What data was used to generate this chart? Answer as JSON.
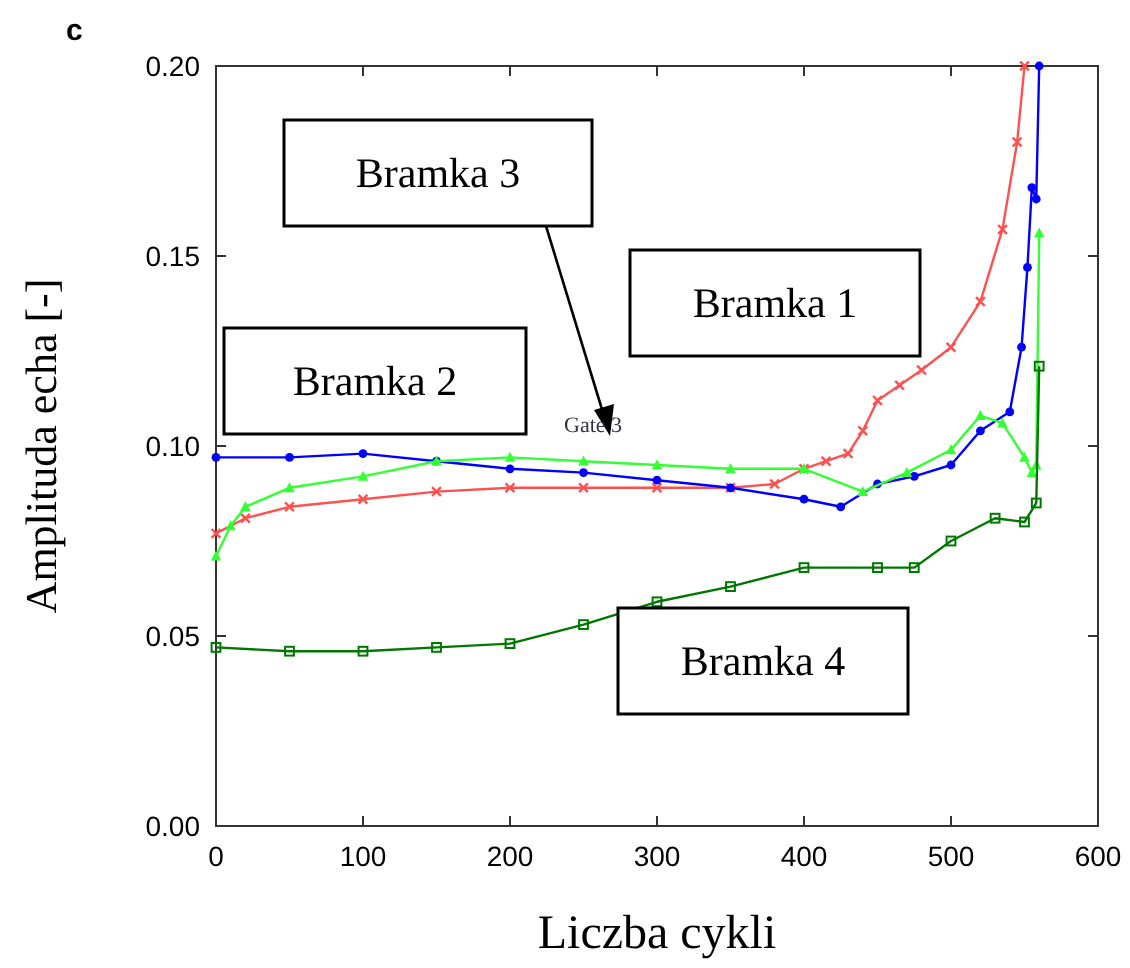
{
  "chart_data": {
    "type": "line",
    "xlabel": "Liczba cykli",
    "ylabel": "Amplituda echa [-]",
    "xlim": [
      0,
      600
    ],
    "ylim": [
      0,
      0.2
    ],
    "xticks": [
      0,
      100,
      200,
      300,
      400,
      500,
      600
    ],
    "yticks": [
      {
        "value": 0,
        "label": "0.00"
      },
      {
        "value": 0.05,
        "label": "0.05"
      },
      {
        "value": 0.1,
        "label": "0.10"
      },
      {
        "value": 0.15,
        "label": "0.15"
      },
      {
        "value": 0.2,
        "label": "0.20"
      }
    ],
    "grid": false,
    "annotations": [
      "c",
      "Bramka 3",
      "Bramka 1",
      "Bramka 2",
      "Bramka 4",
      "Gate 3"
    ],
    "series": [
      {
        "color": "#ff5050",
        "marker": "cross",
        "x": [
          0,
          20,
          50,
          100,
          150,
          200,
          250,
          300,
          350,
          380,
          400,
          415,
          430,
          440,
          450,
          465,
          480,
          500,
          520,
          535,
          545,
          550
        ],
        "values": [
          0.077,
          0.081,
          0.084,
          0.086,
          0.088,
          0.089,
          0.089,
          0.089,
          0.089,
          0.09,
          0.094,
          0.096,
          0.098,
          0.104,
          0.112,
          0.116,
          0.12,
          0.126,
          0.138,
          0.157,
          0.18,
          0.2
        ]
      },
      {
        "color": "#0000ff",
        "marker": "circle",
        "x": [
          0,
          50,
          100,
          150,
          200,
          250,
          300,
          350,
          400,
          425,
          450,
          475,
          500,
          520,
          540,
          548,
          552,
          555,
          558,
          560
        ],
        "values": [
          0.097,
          0.097,
          0.098,
          0.096,
          0.094,
          0.093,
          0.091,
          0.089,
          0.086,
          0.084,
          0.09,
          0.092,
          0.095,
          0.104,
          0.109,
          0.126,
          0.147,
          0.168,
          0.165,
          0.2
        ]
      },
      {
        "color": "#33ff33",
        "marker": "triangle",
        "x": [
          0,
          10,
          20,
          50,
          100,
          150,
          200,
          250,
          300,
          350,
          400,
          440,
          470,
          500,
          520,
          535,
          550,
          555,
          558,
          560
        ],
        "values": [
          0.071,
          0.079,
          0.084,
          0.089,
          0.092,
          0.096,
          0.097,
          0.096,
          0.095,
          0.094,
          0.094,
          0.088,
          0.093,
          0.099,
          0.108,
          0.106,
          0.097,
          0.093,
          0.095,
          0.156
        ]
      },
      {
        "color": "#007700",
        "marker": "square",
        "x": [
          0,
          50,
          100,
          150,
          200,
          250,
          300,
          350,
          400,
          450,
          475,
          500,
          530,
          550,
          558,
          560
        ],
        "values": [
          0.047,
          0.046,
          0.046,
          0.047,
          0.048,
          0.053,
          0.059,
          0.063,
          0.068,
          0.068,
          0.068,
          0.075,
          0.081,
          0.08,
          0.085,
          0.121
        ]
      }
    ]
  }
}
